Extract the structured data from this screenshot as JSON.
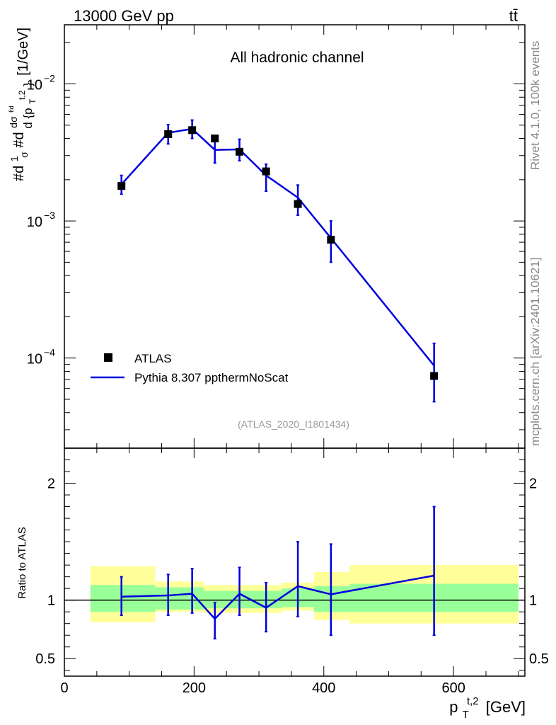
{
  "header": {
    "left": "13000 GeV pp",
    "right": "tt̄"
  },
  "side_labels": {
    "rivet": "Rivet 4.1.0,  100k events",
    "mcplots": "mcplots.cern.ch [arXiv:2401.10621]"
  },
  "chart_data": [
    {
      "type": "scatter",
      "panel": "main",
      "title": "All hadronic channel",
      "watermark": "(ATLAS_2020_I1801434)",
      "ylabel": "#d₁/σ#d dσ/d{p_T^{t,2}} [1/GeV]",
      "ylabel_parts": {
        "a": "#d",
        "frac1_num": "1",
        "frac1_den": "σ",
        "b": "#d",
        "frac2_num": "dσ",
        "frac2_num_sup": "fid",
        "frac2_den": "d {p",
        "frac2_den_sub": "T",
        "frac2_den_sup": "t,2",
        "frac2_den_end": "}",
        "unit": "[1/GeV]"
      },
      "yscale": "log",
      "ylim": [
        2.2e-05,
        0.027
      ],
      "xlim": [
        0,
        710
      ],
      "y_ticks": [
        {
          "v": 0.01,
          "base": "10",
          "exp": "−2"
        },
        {
          "v": 0.001,
          "base": "10",
          "exp": "−3"
        },
        {
          "v": 0.0001,
          "base": "10",
          "exp": "−4"
        }
      ],
      "legend": [
        {
          "label": "ATLAS",
          "kind": "marker",
          "color": "#000000"
        },
        {
          "label": "Pythia 8.307 ppthermNoScat",
          "kind": "line",
          "color": "#0000dd"
        }
      ],
      "series": [
        {
          "name": "ATLAS",
          "x": [
            88,
            160,
            197,
            232,
            270,
            311,
            360,
            411,
            570
          ],
          "y": [
            0.0018,
            0.0043,
            0.0046,
            0.004,
            0.0032,
            0.0023,
            0.00133,
            0.00073,
            7.4e-05
          ]
        },
        {
          "name": "Pythia 8.307 ppthermNoScat",
          "x": [
            88,
            160,
            197,
            232,
            270,
            311,
            360,
            411,
            570
          ],
          "y": [
            0.00185,
            0.0044,
            0.0047,
            0.0033,
            0.00333,
            0.00215,
            0.00148,
            0.00075,
            8.8e-05
          ],
          "y_err_low": [
            0.00157,
            0.00365,
            0.004,
            0.00265,
            0.00275,
            0.00165,
            0.0011,
            0.0005,
            4.8e-05
          ],
          "y_err_high": [
            0.00215,
            0.00505,
            0.00545,
            0.004,
            0.00395,
            0.0026,
            0.00183,
            0.001,
            0.000128
          ]
        }
      ]
    },
    {
      "type": "line",
      "panel": "ratio",
      "ylabel": "Ratio to ATLAS",
      "xlabel": "p_T^{t,2} [GeV]",
      "xlabel_parts": {
        "p": "p",
        "sub": "T",
        "sup": "t,2",
        "unit": "[GeV]"
      },
      "ylim": [
        0.35,
        2.3
      ],
      "xlim": [
        0,
        710
      ],
      "x_ticks": [
        0,
        200,
        400,
        600
      ],
      "y_ticks": [
        0.5,
        1,
        2
      ],
      "reference_line": 1.0,
      "bands": [
        {
          "x0": 40,
          "x1": 140,
          "y1_lo": 0.9,
          "y1_hi": 1.13,
          "y2_lo": 0.81,
          "y2_hi": 1.29
        },
        {
          "x0": 140,
          "x1": 185,
          "y1_lo": 0.92,
          "y1_hi": 1.11,
          "y2_lo": 0.9,
          "y2_hi": 1.16
        },
        {
          "x0": 185,
          "x1": 215,
          "y1_lo": 0.92,
          "y1_hi": 1.11,
          "y2_lo": 0.9,
          "y2_hi": 1.16
        },
        {
          "x0": 215,
          "x1": 250,
          "y1_lo": 0.93,
          "y1_hi": 1.08,
          "y2_lo": 0.89,
          "y2_hi": 1.13
        },
        {
          "x0": 250,
          "x1": 290,
          "y1_lo": 0.93,
          "y1_hi": 1.08,
          "y2_lo": 0.89,
          "y2_hi": 1.13
        },
        {
          "x0": 290,
          "x1": 335,
          "y1_lo": 0.93,
          "y1_hi": 1.08,
          "y2_lo": 0.89,
          "y2_hi": 1.13
        },
        {
          "x0": 335,
          "x1": 385,
          "y1_lo": 0.94,
          "y1_hi": 1.1,
          "y2_lo": 0.91,
          "y2_hi": 1.15
        },
        {
          "x0": 385,
          "x1": 440,
          "y1_lo": 0.9,
          "y1_hi": 1.12,
          "y2_lo": 0.83,
          "y2_hi": 1.24
        },
        {
          "x0": 440,
          "x1": 700,
          "y1_lo": 0.9,
          "y1_hi": 1.14,
          "y2_lo": 0.8,
          "y2_hi": 1.3
        }
      ],
      "band_colors": {
        "inner": "#99ff99",
        "outer": "#ffff99"
      },
      "series": [
        {
          "name": "Pythia 8.307 ppthermNoScat / ATLAS",
          "x": [
            88,
            160,
            197,
            232,
            270,
            311,
            360,
            411,
            570
          ],
          "y": [
            1.03,
            1.04,
            1.055,
            0.84,
            1.055,
            0.935,
            1.12,
            1.05,
            1.21
          ],
          "y_err_low": [
            0.87,
            0.87,
            0.89,
            0.67,
            0.87,
            0.73,
            0.86,
            0.7,
            0.7
          ],
          "y_err_high": [
            1.2,
            1.22,
            1.27,
            0.98,
            1.28,
            1.15,
            1.5,
            1.48,
            1.8
          ]
        }
      ]
    }
  ],
  "colors": {
    "mc": "#0000dd",
    "data": "#000000",
    "watermark": "#999999",
    "side_text": "#888888"
  }
}
